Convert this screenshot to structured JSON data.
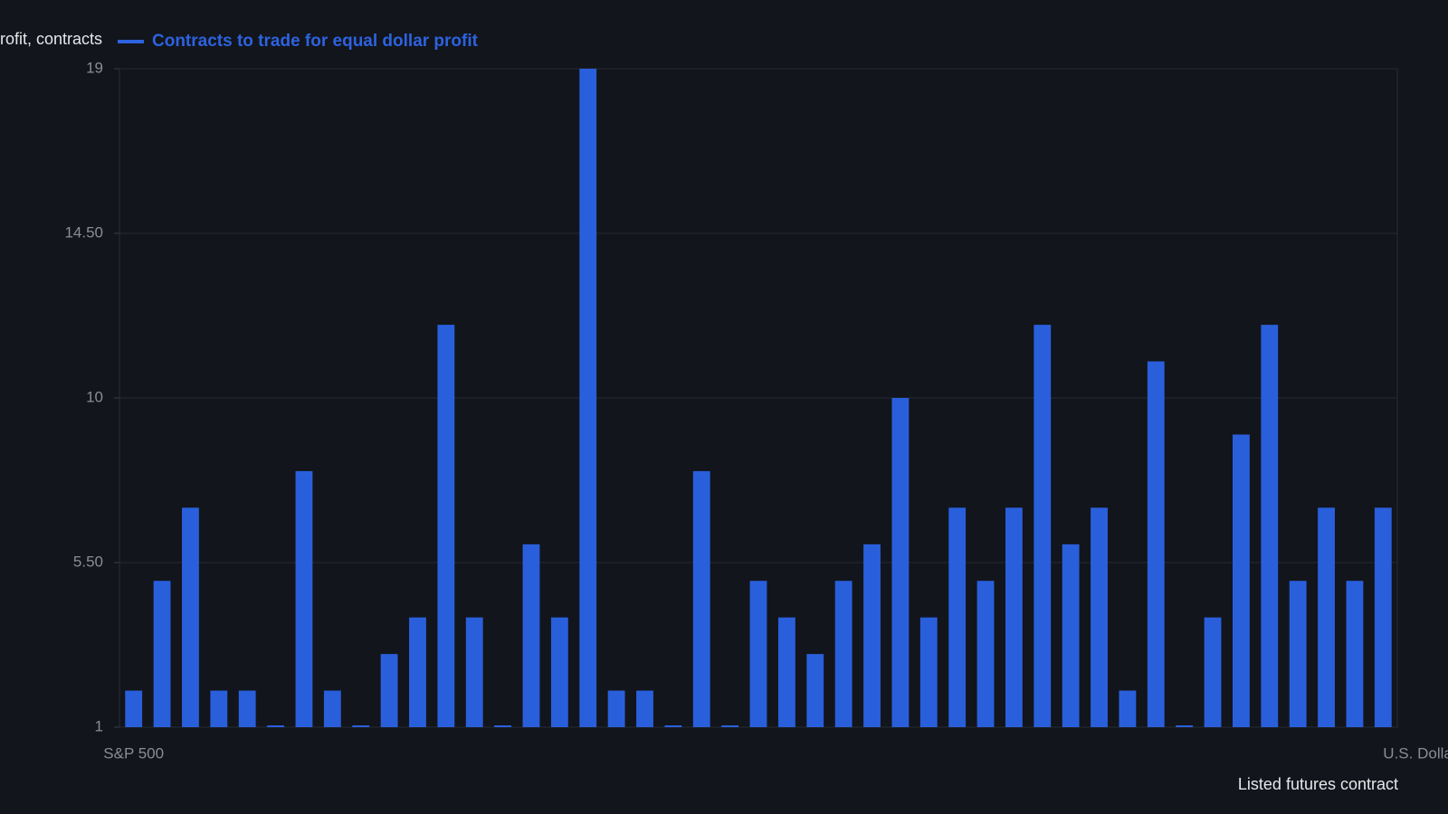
{
  "chart_data": {
    "type": "bar",
    "y_label": "Contracts to trade for equal dollar profit, contracts",
    "x_label": "Listed futures contract",
    "series": [
      {
        "name": "Contracts to trade for equal dollar profit",
        "color": "#2a5fdc",
        "values": [
          2,
          5,
          7,
          2,
          2,
          1,
          8,
          2,
          1,
          3,
          4,
          12,
          4,
          1,
          6,
          4,
          19,
          2,
          2,
          1,
          8,
          1,
          5,
          4,
          3,
          5,
          6,
          10,
          4,
          7,
          5,
          7,
          12,
          6,
          7,
          2,
          11,
          1,
          4,
          9,
          12,
          5,
          7,
          5,
          7
        ]
      }
    ],
    "categories": [
      "S&P 500",
      null,
      null,
      null,
      null,
      null,
      null,
      null,
      null,
      null,
      null,
      null,
      null,
      null,
      null,
      null,
      null,
      null,
      null,
      null,
      null,
      null,
      null,
      null,
      null,
      null,
      null,
      null,
      null,
      null,
      null,
      null,
      null,
      null,
      null,
      null,
      null,
      null,
      null,
      null,
      null,
      null,
      null,
      null,
      "U.S. Dollar"
    ],
    "ylim": [
      1,
      19
    ],
    "yticks": [
      1,
      {
        "value": 5.5,
        "label": "5.50"
      },
      10,
      {
        "value": 14.5,
        "label": "14.50"
      },
      19
    ],
    "grid": true,
    "legend": "top-left"
  }
}
